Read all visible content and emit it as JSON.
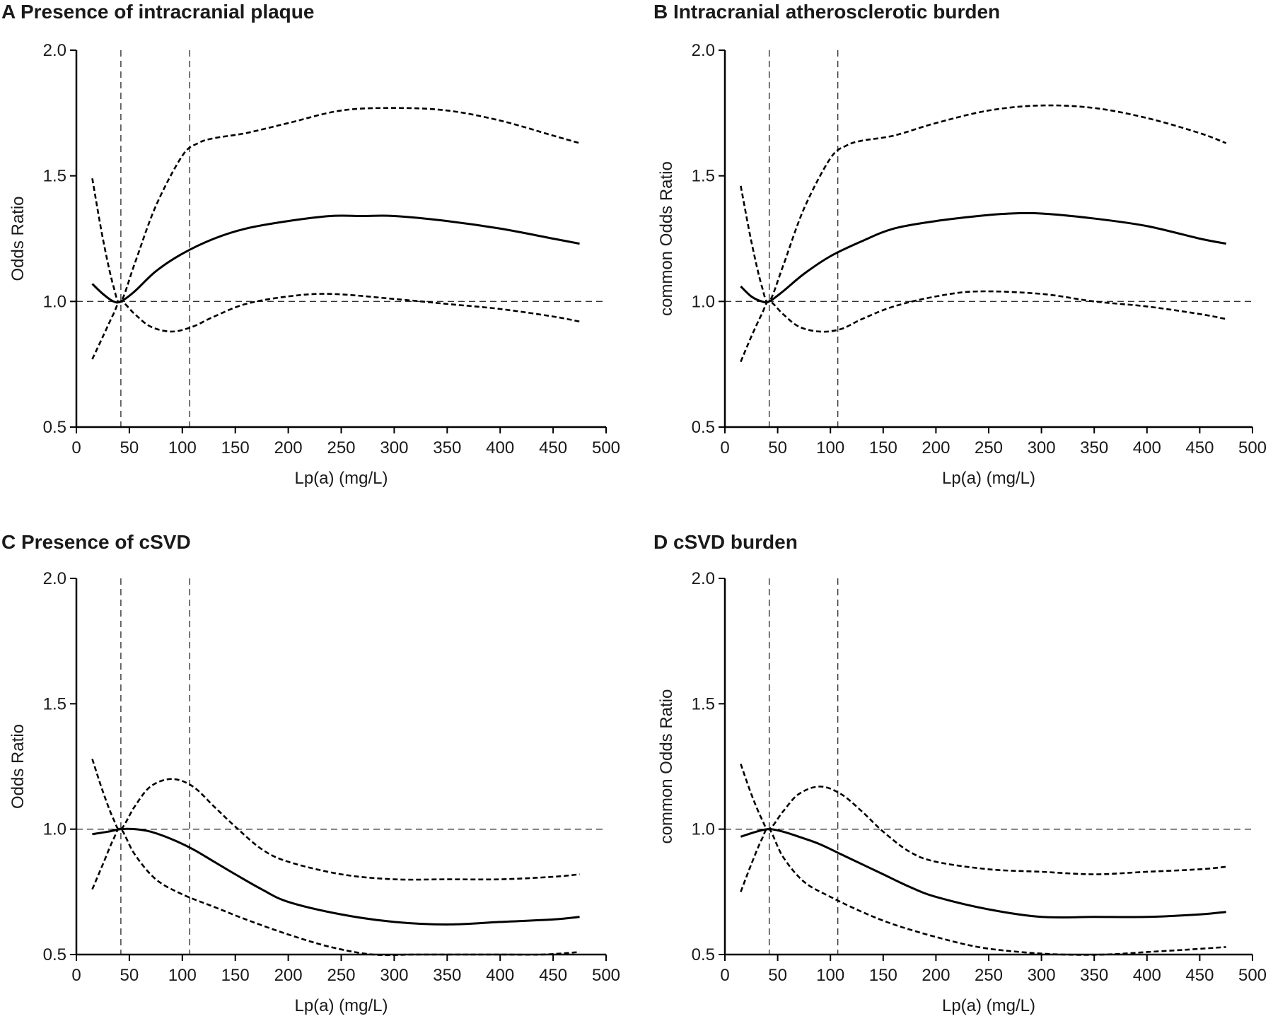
{
  "chart_data": [
    {
      "type": "line",
      "panel": "A",
      "title": "A Presence of intracranial plaque",
      "xlabel": "Lp(a) (mg/L)",
      "ylabel": "Odds Ratio",
      "xlim": [
        0,
        500
      ],
      "ylim": [
        0.5,
        2.0
      ],
      "xticks": [
        "0",
        "50",
        "100",
        "150",
        "200",
        "250",
        "300",
        "350",
        "400",
        "450",
        "500"
      ],
      "yticks": [
        "0.5",
        "1.0",
        "1.5",
        "2.0"
      ],
      "ref_y": 1.0,
      "ref_x": [
        42,
        107
      ],
      "estimate": {
        "x": [
          15,
          25,
          35,
          42,
          55,
          75,
          100,
          130,
          160,
          200,
          240,
          270,
          300,
          350,
          400,
          450,
          475
        ],
        "y": [
          1.07,
          1.03,
          1.0,
          1.0,
          1.04,
          1.12,
          1.19,
          1.25,
          1.29,
          1.32,
          1.34,
          1.34,
          1.34,
          1.32,
          1.29,
          1.25,
          1.23
        ]
      },
      "upper_ci": {
        "x": [
          15,
          25,
          35,
          42,
          55,
          75,
          100,
          115,
          130,
          160,
          200,
          250,
          300,
          350,
          400,
          450,
          475
        ],
        "y": [
          1.49,
          1.25,
          1.06,
          1.0,
          1.15,
          1.38,
          1.58,
          1.63,
          1.65,
          1.67,
          1.71,
          1.76,
          1.77,
          1.76,
          1.72,
          1.66,
          1.63
        ]
      },
      "lower_ci": {
        "x": [
          15,
          25,
          35,
          42,
          55,
          70,
          90,
          110,
          130,
          160,
          200,
          240,
          300,
          350,
          400,
          450,
          475
        ],
        "y": [
          0.77,
          0.86,
          0.95,
          1.0,
          0.95,
          0.9,
          0.88,
          0.9,
          0.94,
          0.99,
          1.02,
          1.03,
          1.01,
          0.99,
          0.97,
          0.94,
          0.92
        ]
      }
    },
    {
      "type": "line",
      "panel": "B",
      "title": "B Intracranial atherosclerotic burden",
      "xlabel": "Lp(a) (mg/L)",
      "ylabel": "common Odds Ratio",
      "xlim": [
        0,
        500
      ],
      "ylim": [
        0.5,
        2.0
      ],
      "xticks": [
        "0",
        "50",
        "100",
        "150",
        "200",
        "250",
        "300",
        "350",
        "400",
        "450",
        "500"
      ],
      "yticks": [
        "0.5",
        "1.0",
        "1.5",
        "2.0"
      ],
      "ref_y": 1.0,
      "ref_x": [
        42,
        107
      ],
      "estimate": {
        "x": [
          15,
          25,
          35,
          42,
          55,
          75,
          100,
          130,
          160,
          200,
          240,
          270,
          300,
          350,
          400,
          450,
          475
        ],
        "y": [
          1.06,
          1.02,
          1.0,
          1.0,
          1.04,
          1.11,
          1.18,
          1.24,
          1.29,
          1.32,
          1.34,
          1.35,
          1.35,
          1.33,
          1.3,
          1.25,
          1.23
        ]
      },
      "upper_ci": {
        "x": [
          15,
          25,
          35,
          42,
          55,
          75,
          100,
          115,
          130,
          160,
          200,
          250,
          300,
          350,
          400,
          450,
          475
        ],
        "y": [
          1.46,
          1.24,
          1.06,
          1.0,
          1.14,
          1.37,
          1.57,
          1.62,
          1.64,
          1.66,
          1.71,
          1.76,
          1.78,
          1.77,
          1.73,
          1.67,
          1.63
        ]
      },
      "lower_ci": {
        "x": [
          15,
          25,
          35,
          42,
          55,
          70,
          90,
          110,
          130,
          160,
          200,
          240,
          300,
          350,
          400,
          450,
          475
        ],
        "y": [
          0.76,
          0.86,
          0.95,
          1.0,
          0.95,
          0.9,
          0.88,
          0.89,
          0.93,
          0.98,
          1.02,
          1.04,
          1.03,
          1.0,
          0.98,
          0.95,
          0.93
        ]
      }
    },
    {
      "type": "line",
      "panel": "C",
      "title": "C Presence of cSVD",
      "xlabel": "Lp(a) (mg/L)",
      "ylabel": "Odds Ratio",
      "xlim": [
        0,
        500
      ],
      "ylim": [
        0.5,
        2.0
      ],
      "xticks": [
        "0",
        "50",
        "100",
        "150",
        "200",
        "250",
        "300",
        "350",
        "400",
        "450",
        "500"
      ],
      "yticks": [
        "0.5",
        "1.0",
        "1.5",
        "2.0"
      ],
      "ref_y": 1.0,
      "ref_x": [
        42,
        107
      ],
      "estimate": {
        "x": [
          15,
          30,
          42,
          55,
          70,
          90,
          110,
          130,
          150,
          175,
          200,
          250,
          300,
          350,
          400,
          450,
          475
        ],
        "y": [
          0.98,
          0.99,
          1.0,
          1.0,
          0.99,
          0.96,
          0.92,
          0.87,
          0.82,
          0.76,
          0.71,
          0.66,
          0.63,
          0.62,
          0.63,
          0.64,
          0.65
        ]
      },
      "upper_ci": {
        "x": [
          15,
          25,
          35,
          42,
          55,
          70,
          90,
          110,
          130,
          150,
          175,
          200,
          250,
          300,
          350,
          400,
          450,
          475
        ],
        "y": [
          1.28,
          1.15,
          1.04,
          1.0,
          1.09,
          1.17,
          1.2,
          1.17,
          1.09,
          1.01,
          0.92,
          0.87,
          0.82,
          0.8,
          0.8,
          0.8,
          0.81,
          0.82
        ]
      },
      "lower_ci": {
        "x": [
          15,
          25,
          35,
          42,
          55,
          75,
          100,
          130,
          160,
          200,
          240,
          280,
          320,
          360,
          400,
          440,
          475
        ],
        "y": [
          0.76,
          0.86,
          0.96,
          1.0,
          0.9,
          0.8,
          0.74,
          0.69,
          0.64,
          0.58,
          0.53,
          0.5,
          0.49,
          0.48,
          0.48,
          0.49,
          0.51
        ]
      }
    },
    {
      "type": "line",
      "panel": "D",
      "title": "D cSVD burden",
      "xlabel": "Lp(a) (mg/L)",
      "ylabel": "common Odds Ratio",
      "xlim": [
        0,
        500
      ],
      "ylim": [
        0.5,
        2.0
      ],
      "xticks": [
        "0",
        "50",
        "100",
        "150",
        "200",
        "250",
        "300",
        "350",
        "400",
        "450",
        "500"
      ],
      "yticks": [
        "0.5",
        "1.0",
        "1.5",
        "2.0"
      ],
      "ref_y": 1.0,
      "ref_x": [
        42,
        107
      ],
      "estimate": {
        "x": [
          15,
          30,
          42,
          55,
          70,
          90,
          110,
          130,
          150,
          175,
          200,
          250,
          300,
          350,
          400,
          450,
          475
        ],
        "y": [
          0.97,
          0.99,
          1.0,
          0.99,
          0.97,
          0.94,
          0.9,
          0.86,
          0.82,
          0.77,
          0.73,
          0.68,
          0.65,
          0.65,
          0.65,
          0.66,
          0.67
        ]
      },
      "upper_ci": {
        "x": [
          15,
          25,
          35,
          42,
          55,
          70,
          90,
          110,
          130,
          150,
          175,
          200,
          250,
          300,
          350,
          400,
          450,
          475
        ],
        "y": [
          1.26,
          1.14,
          1.04,
          1.0,
          1.07,
          1.14,
          1.17,
          1.14,
          1.07,
          0.99,
          0.91,
          0.87,
          0.84,
          0.83,
          0.82,
          0.83,
          0.84,
          0.85
        ]
      },
      "lower_ci": {
        "x": [
          15,
          25,
          35,
          42,
          55,
          75,
          100,
          130,
          160,
          200,
          240,
          280,
          320,
          360,
          400,
          440,
          475
        ],
        "y": [
          0.75,
          0.86,
          0.96,
          1.0,
          0.89,
          0.79,
          0.73,
          0.67,
          0.62,
          0.57,
          0.53,
          0.51,
          0.5,
          0.5,
          0.51,
          0.52,
          0.53
        ]
      }
    }
  ]
}
